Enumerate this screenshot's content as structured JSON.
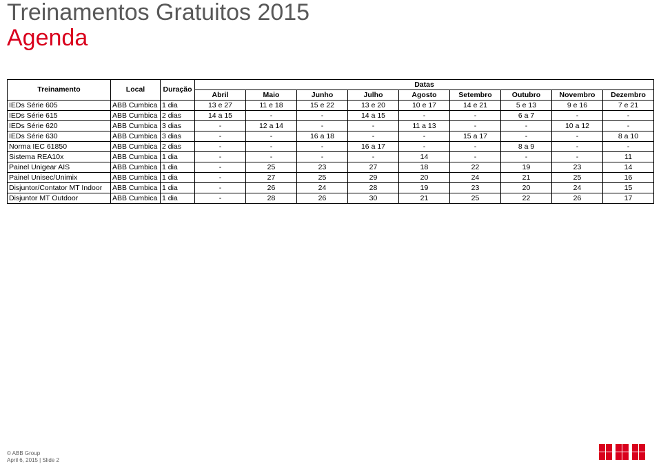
{
  "header": {
    "title": "Treinamentos Gratuitos 2015",
    "subtitle": "Agenda"
  },
  "tableHead": {
    "treinamento": "Treinamento",
    "local": "Local",
    "duracao": "Duração",
    "datas": "Datas",
    "months": [
      "Abril",
      "Maio",
      "Junho",
      "Julho",
      "Agosto",
      "Setembro",
      "Outubro",
      "Novembro",
      "Dezembro"
    ]
  },
  "rows": [
    {
      "treinamento": "IEDs Série 605",
      "local": "ABB Cumbica",
      "duracao": "1 dia",
      "dates": [
        "13 e 27",
        "11 e 18",
        "15 e 22",
        "13 e 20",
        "10 e 17",
        "14 e 21",
        "5 e 13",
        "9 e 16",
        "7 e 21"
      ]
    },
    {
      "treinamento": "IEDs Série 615",
      "local": "ABB Cumbica",
      "duracao": "2 dias",
      "dates": [
        "14 a 15",
        "-",
        "-",
        "14 a 15",
        "-",
        "-",
        "6 a 7",
        "-",
        "-"
      ]
    },
    {
      "treinamento": "IEDs Série 620",
      "local": "ABB Cumbica",
      "duracao": "3 dias",
      "dates": [
        "-",
        "12 a 14",
        "-",
        "-",
        "11 a 13",
        "-",
        "-",
        "10 a 12",
        "-"
      ]
    },
    {
      "treinamento": "IEDs Série 630",
      "local": "ABB Cumbica",
      "duracao": "3 dias",
      "dates": [
        "-",
        "-",
        "16 a 18",
        "-",
        "-",
        "15 a 17",
        "-",
        "-",
        "8 a 10"
      ]
    },
    {
      "treinamento": "Norma IEC 61850",
      "local": "ABB Cumbica",
      "duracao": "2 dias",
      "dates": [
        "-",
        "-",
        "-",
        "16 a 17",
        "-",
        "-",
        "8 a 9",
        "-",
        "-"
      ]
    },
    {
      "treinamento": "Sistema REA10x",
      "local": "ABB Cumbica",
      "duracao": "1 dia",
      "dates": [
        "-",
        "-",
        "-",
        "-",
        "14",
        "-",
        "-",
        "-",
        "11"
      ]
    },
    {
      "treinamento": "Painel Unigear AIS",
      "local": "ABB Cumbica",
      "duracao": "1 dia",
      "dates": [
        "-",
        "25",
        "23",
        "27",
        "18",
        "22",
        "19",
        "23",
        "14"
      ]
    },
    {
      "treinamento": "Painel Unisec/Unimix",
      "local": "ABB Cumbica",
      "duracao": "1 dia",
      "dates": [
        "-",
        "27",
        "25",
        "29",
        "20",
        "24",
        "21",
        "25",
        "16"
      ]
    },
    {
      "treinamento": "Disjuntor/Contator MT Indoor",
      "local": "ABB Cumbica",
      "duracao": "1 dia",
      "dates": [
        "-",
        "26",
        "24",
        "28",
        "19",
        "23",
        "20",
        "24",
        "15"
      ]
    },
    {
      "treinamento": "Disjuntor MT Outdoor",
      "local": "ABB Cumbica",
      "duracao": "1 dia",
      "dates": [
        "-",
        "28",
        "26",
        "30",
        "21",
        "25",
        "22",
        "26",
        "17"
      ]
    }
  ],
  "footer": {
    "line1": "© ABB Group",
    "line2": "April 6, 2015 | Slide 2"
  },
  "logo": {
    "color": "#d9001d",
    "text": "ABB"
  }
}
